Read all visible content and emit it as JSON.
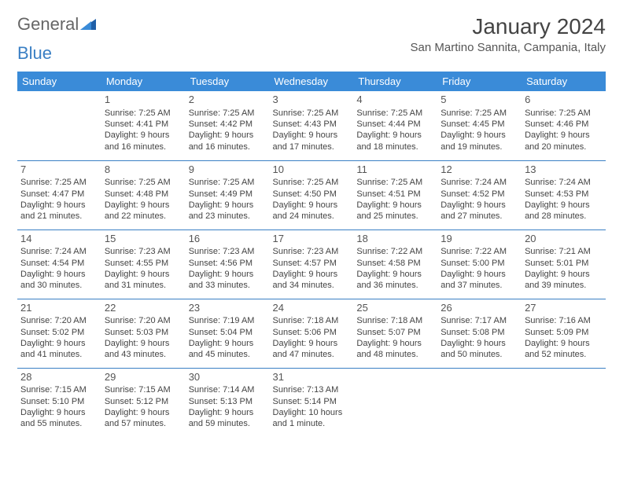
{
  "logo": {
    "text1": "General",
    "text2": "Blue"
  },
  "header": {
    "month_title": "January 2024",
    "location": "San Martino Sannita, Campania, Italy"
  },
  "colors": {
    "header_bg": "#3a8bd8",
    "header_text": "#ffffff",
    "row_border": "#3a7fc4",
    "body_text": "#444444",
    "logo_blue": "#3a7fc4"
  },
  "weekdays": [
    "Sunday",
    "Monday",
    "Tuesday",
    "Wednesday",
    "Thursday",
    "Friday",
    "Saturday"
  ],
  "weeks": [
    [
      null,
      {
        "day": "1",
        "sunrise": "Sunrise: 7:25 AM",
        "sunset": "Sunset: 4:41 PM",
        "daylight": "Daylight: 9 hours and 16 minutes."
      },
      {
        "day": "2",
        "sunrise": "Sunrise: 7:25 AM",
        "sunset": "Sunset: 4:42 PM",
        "daylight": "Daylight: 9 hours and 16 minutes."
      },
      {
        "day": "3",
        "sunrise": "Sunrise: 7:25 AM",
        "sunset": "Sunset: 4:43 PM",
        "daylight": "Daylight: 9 hours and 17 minutes."
      },
      {
        "day": "4",
        "sunrise": "Sunrise: 7:25 AM",
        "sunset": "Sunset: 4:44 PM",
        "daylight": "Daylight: 9 hours and 18 minutes."
      },
      {
        "day": "5",
        "sunrise": "Sunrise: 7:25 AM",
        "sunset": "Sunset: 4:45 PM",
        "daylight": "Daylight: 9 hours and 19 minutes."
      },
      {
        "day": "6",
        "sunrise": "Sunrise: 7:25 AM",
        "sunset": "Sunset: 4:46 PM",
        "daylight": "Daylight: 9 hours and 20 minutes."
      }
    ],
    [
      {
        "day": "7",
        "sunrise": "Sunrise: 7:25 AM",
        "sunset": "Sunset: 4:47 PM",
        "daylight": "Daylight: 9 hours and 21 minutes."
      },
      {
        "day": "8",
        "sunrise": "Sunrise: 7:25 AM",
        "sunset": "Sunset: 4:48 PM",
        "daylight": "Daylight: 9 hours and 22 minutes."
      },
      {
        "day": "9",
        "sunrise": "Sunrise: 7:25 AM",
        "sunset": "Sunset: 4:49 PM",
        "daylight": "Daylight: 9 hours and 23 minutes."
      },
      {
        "day": "10",
        "sunrise": "Sunrise: 7:25 AM",
        "sunset": "Sunset: 4:50 PM",
        "daylight": "Daylight: 9 hours and 24 minutes."
      },
      {
        "day": "11",
        "sunrise": "Sunrise: 7:25 AM",
        "sunset": "Sunset: 4:51 PM",
        "daylight": "Daylight: 9 hours and 25 minutes."
      },
      {
        "day": "12",
        "sunrise": "Sunrise: 7:24 AM",
        "sunset": "Sunset: 4:52 PM",
        "daylight": "Daylight: 9 hours and 27 minutes."
      },
      {
        "day": "13",
        "sunrise": "Sunrise: 7:24 AM",
        "sunset": "Sunset: 4:53 PM",
        "daylight": "Daylight: 9 hours and 28 minutes."
      }
    ],
    [
      {
        "day": "14",
        "sunrise": "Sunrise: 7:24 AM",
        "sunset": "Sunset: 4:54 PM",
        "daylight": "Daylight: 9 hours and 30 minutes."
      },
      {
        "day": "15",
        "sunrise": "Sunrise: 7:23 AM",
        "sunset": "Sunset: 4:55 PM",
        "daylight": "Daylight: 9 hours and 31 minutes."
      },
      {
        "day": "16",
        "sunrise": "Sunrise: 7:23 AM",
        "sunset": "Sunset: 4:56 PM",
        "daylight": "Daylight: 9 hours and 33 minutes."
      },
      {
        "day": "17",
        "sunrise": "Sunrise: 7:23 AM",
        "sunset": "Sunset: 4:57 PM",
        "daylight": "Daylight: 9 hours and 34 minutes."
      },
      {
        "day": "18",
        "sunrise": "Sunrise: 7:22 AM",
        "sunset": "Sunset: 4:58 PM",
        "daylight": "Daylight: 9 hours and 36 minutes."
      },
      {
        "day": "19",
        "sunrise": "Sunrise: 7:22 AM",
        "sunset": "Sunset: 5:00 PM",
        "daylight": "Daylight: 9 hours and 37 minutes."
      },
      {
        "day": "20",
        "sunrise": "Sunrise: 7:21 AM",
        "sunset": "Sunset: 5:01 PM",
        "daylight": "Daylight: 9 hours and 39 minutes."
      }
    ],
    [
      {
        "day": "21",
        "sunrise": "Sunrise: 7:20 AM",
        "sunset": "Sunset: 5:02 PM",
        "daylight": "Daylight: 9 hours and 41 minutes."
      },
      {
        "day": "22",
        "sunrise": "Sunrise: 7:20 AM",
        "sunset": "Sunset: 5:03 PM",
        "daylight": "Daylight: 9 hours and 43 minutes."
      },
      {
        "day": "23",
        "sunrise": "Sunrise: 7:19 AM",
        "sunset": "Sunset: 5:04 PM",
        "daylight": "Daylight: 9 hours and 45 minutes."
      },
      {
        "day": "24",
        "sunrise": "Sunrise: 7:18 AM",
        "sunset": "Sunset: 5:06 PM",
        "daylight": "Daylight: 9 hours and 47 minutes."
      },
      {
        "day": "25",
        "sunrise": "Sunrise: 7:18 AM",
        "sunset": "Sunset: 5:07 PM",
        "daylight": "Daylight: 9 hours and 48 minutes."
      },
      {
        "day": "26",
        "sunrise": "Sunrise: 7:17 AM",
        "sunset": "Sunset: 5:08 PM",
        "daylight": "Daylight: 9 hours and 50 minutes."
      },
      {
        "day": "27",
        "sunrise": "Sunrise: 7:16 AM",
        "sunset": "Sunset: 5:09 PM",
        "daylight": "Daylight: 9 hours and 52 minutes."
      }
    ],
    [
      {
        "day": "28",
        "sunrise": "Sunrise: 7:15 AM",
        "sunset": "Sunset: 5:10 PM",
        "daylight": "Daylight: 9 hours and 55 minutes."
      },
      {
        "day": "29",
        "sunrise": "Sunrise: 7:15 AM",
        "sunset": "Sunset: 5:12 PM",
        "daylight": "Daylight: 9 hours and 57 minutes."
      },
      {
        "day": "30",
        "sunrise": "Sunrise: 7:14 AM",
        "sunset": "Sunset: 5:13 PM",
        "daylight": "Daylight: 9 hours and 59 minutes."
      },
      {
        "day": "31",
        "sunrise": "Sunrise: 7:13 AM",
        "sunset": "Sunset: 5:14 PM",
        "daylight": "Daylight: 10 hours and 1 minute."
      },
      null,
      null,
      null
    ]
  ]
}
